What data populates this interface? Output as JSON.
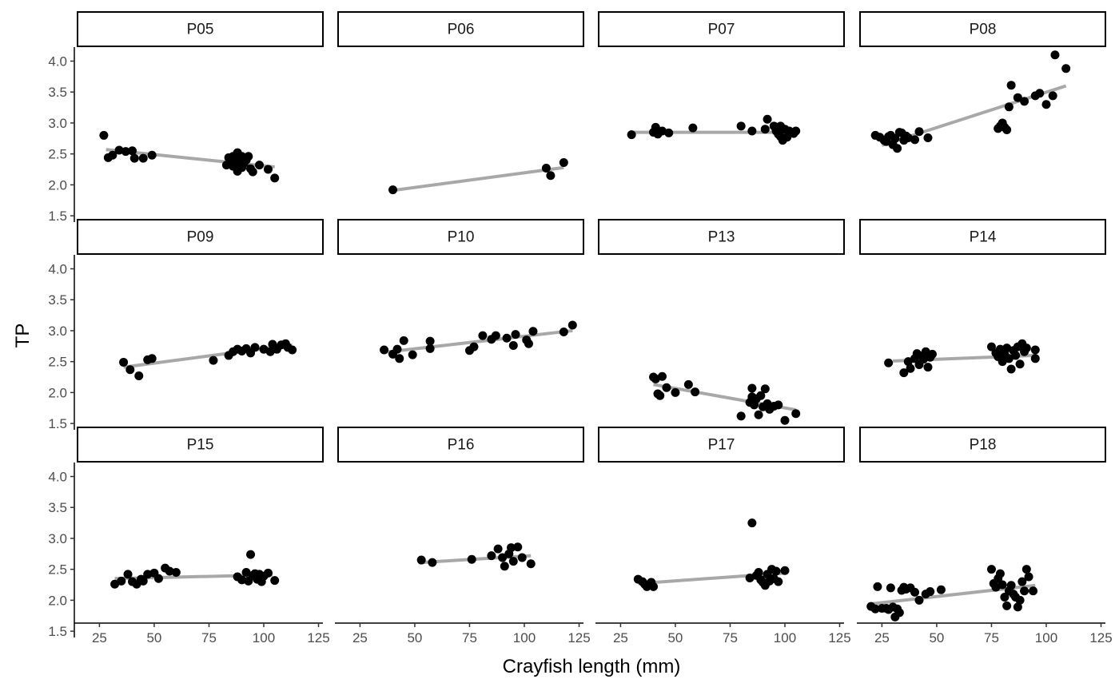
{
  "chart_data": {
    "type": "scatter",
    "xlabel": "Crayfish length (mm)",
    "ylabel": "TP",
    "xlim": [
      15,
      127
    ],
    "ylim": [
      1.45,
      4.2
    ],
    "x_ticks": [
      "25",
      "50",
      "75",
      "100",
      "125"
    ],
    "y_ticks": [
      "1.5",
      "2.0",
      "2.5",
      "3.0",
      "3.5",
      "4.0"
    ],
    "grid": false,
    "legend": "none",
    "facet_cols": 4,
    "point_color": "#000000",
    "fit_color": "#a8a8a8",
    "panels": [
      {
        "label": "P05",
        "points": [
          [
            27,
            2.8
          ],
          [
            29,
            2.44
          ],
          [
            31,
            2.48
          ],
          [
            34,
            2.56
          ],
          [
            37,
            2.54
          ],
          [
            40,
            2.55
          ],
          [
            41,
            2.43
          ],
          [
            45,
            2.43
          ],
          [
            49,
            2.48
          ],
          [
            83,
            2.32
          ],
          [
            84,
            2.44
          ],
          [
            85,
            2.38
          ],
          [
            86,
            2.46
          ],
          [
            86,
            2.3
          ],
          [
            87,
            2.33
          ],
          [
            88,
            2.22
          ],
          [
            88,
            2.52
          ],
          [
            89,
            2.39
          ],
          [
            90,
            2.46
          ],
          [
            90,
            2.28
          ],
          [
            91,
            2.35
          ],
          [
            92,
            2.4
          ],
          [
            93,
            2.46
          ],
          [
            94,
            2.26
          ],
          [
            95,
            2.21
          ],
          [
            98,
            2.32
          ],
          [
            102,
            2.25
          ],
          [
            105,
            2.11
          ]
        ],
        "fit": [
          [
            28,
            2.57
          ],
          [
            105,
            2.29
          ]
        ]
      },
      {
        "label": "P06",
        "points": [
          [
            40,
            1.92
          ],
          [
            110,
            2.27
          ],
          [
            112,
            2.15
          ],
          [
            118,
            2.36
          ]
        ],
        "fit": [
          [
            40,
            1.91
          ],
          [
            118,
            2.28
          ]
        ]
      },
      {
        "label": "P07",
        "points": [
          [
            30,
            2.81
          ],
          [
            40,
            2.85
          ],
          [
            41,
            2.93
          ],
          [
            42,
            2.82
          ],
          [
            44,
            2.87
          ],
          [
            47,
            2.84
          ],
          [
            58,
            2.92
          ],
          [
            80,
            2.95
          ],
          [
            85,
            2.87
          ],
          [
            91,
            2.9
          ],
          [
            92,
            3.06
          ],
          [
            95,
            2.95
          ],
          [
            96,
            2.87
          ],
          [
            97,
            2.82
          ],
          [
            98,
            2.78
          ],
          [
            98,
            2.95
          ],
          [
            99,
            2.72
          ],
          [
            100,
            2.9
          ],
          [
            101,
            2.77
          ],
          [
            102,
            2.87
          ],
          [
            104,
            2.83
          ],
          [
            105,
            2.87
          ]
        ],
        "fit": [
          [
            30,
            2.85
          ],
          [
            105,
            2.85
          ]
        ]
      },
      {
        "label": "P08",
        "points": [
          [
            22,
            2.8
          ],
          [
            24,
            2.77
          ],
          [
            26,
            2.72
          ],
          [
            27,
            2.7
          ],
          [
            28,
            2.78
          ],
          [
            29,
            2.8
          ],
          [
            30,
            2.65
          ],
          [
            31,
            2.75
          ],
          [
            32,
            2.59
          ],
          [
            33,
            2.85
          ],
          [
            34,
            2.84
          ],
          [
            35,
            2.72
          ],
          [
            36,
            2.79
          ],
          [
            37,
            2.76
          ],
          [
            40,
            2.73
          ],
          [
            42,
            2.86
          ],
          [
            46,
            2.76
          ],
          [
            78,
            2.91
          ],
          [
            79,
            2.95
          ],
          [
            80,
            3.0
          ],
          [
            81,
            2.93
          ],
          [
            82,
            2.89
          ],
          [
            83,
            3.26
          ],
          [
            84,
            3.61
          ],
          [
            87,
            3.41
          ],
          [
            90,
            3.35
          ],
          [
            95,
            3.44
          ],
          [
            97,
            3.48
          ],
          [
            100,
            3.3
          ],
          [
            103,
            3.44
          ],
          [
            104,
            4.1
          ],
          [
            109,
            3.88
          ]
        ],
        "fit": [
          [
            25,
            2.64
          ],
          [
            109,
            3.6
          ]
        ]
      },
      {
        "label": "P09",
        "points": [
          [
            36,
            2.49
          ],
          [
            39,
            2.37
          ],
          [
            43,
            2.27
          ],
          [
            47,
            2.53
          ],
          [
            49,
            2.55
          ],
          [
            77,
            2.52
          ],
          [
            84,
            2.6
          ],
          [
            86,
            2.66
          ],
          [
            88,
            2.7
          ],
          [
            90,
            2.67
          ],
          [
            92,
            2.71
          ],
          [
            94,
            2.64
          ],
          [
            96,
            2.73
          ],
          [
            100,
            2.7
          ],
          [
            103,
            2.66
          ],
          [
            104,
            2.78
          ],
          [
            106,
            2.7
          ],
          [
            108,
            2.77
          ],
          [
            110,
            2.79
          ],
          [
            111,
            2.73
          ],
          [
            113,
            2.69
          ]
        ],
        "fit": [
          [
            36,
            2.41
          ],
          [
            113,
            2.77
          ]
        ]
      },
      {
        "label": "P10",
        "points": [
          [
            36,
            2.69
          ],
          [
            40,
            2.62
          ],
          [
            42,
            2.7
          ],
          [
            43,
            2.55
          ],
          [
            45,
            2.84
          ],
          [
            49,
            2.61
          ],
          [
            57,
            2.83
          ],
          [
            57,
            2.71
          ],
          [
            75,
            2.68
          ],
          [
            77,
            2.74
          ],
          [
            81,
            2.92
          ],
          [
            85,
            2.86
          ],
          [
            87,
            2.92
          ],
          [
            92,
            2.88
          ],
          [
            95,
            2.76
          ],
          [
            96,
            2.94
          ],
          [
            101,
            2.85
          ],
          [
            102,
            2.79
          ],
          [
            104,
            2.99
          ],
          [
            118,
            2.98
          ],
          [
            122,
            3.09
          ]
        ],
        "fit": [
          [
            36,
            2.65
          ],
          [
            122,
            3.0
          ]
        ]
      },
      {
        "label": "P13",
        "points": [
          [
            40,
            2.25
          ],
          [
            41,
            2.22
          ],
          [
            42,
            1.98
          ],
          [
            43,
            1.95
          ],
          [
            44,
            2.26
          ],
          [
            46,
            2.08
          ],
          [
            50,
            2.0
          ],
          [
            56,
            2.13
          ],
          [
            59,
            2.01
          ],
          [
            80,
            1.62
          ],
          [
            84,
            1.84
          ],
          [
            85,
            2.07
          ],
          [
            85,
            1.93
          ],
          [
            86,
            1.8
          ],
          [
            87,
            1.9
          ],
          [
            88,
            1.64
          ],
          [
            89,
            1.95
          ],
          [
            90,
            1.77
          ],
          [
            91,
            2.06
          ],
          [
            92,
            1.82
          ],
          [
            93,
            1.73
          ],
          [
            95,
            1.78
          ],
          [
            97,
            1.8
          ],
          [
            100,
            1.55
          ],
          [
            105,
            1.66
          ]
        ],
        "fit": [
          [
            40,
            2.13
          ],
          [
            105,
            1.72
          ]
        ]
      },
      {
        "label": "P14",
        "points": [
          [
            28,
            2.48
          ],
          [
            35,
            2.32
          ],
          [
            37,
            2.5
          ],
          [
            38,
            2.39
          ],
          [
            40,
            2.55
          ],
          [
            41,
            2.63
          ],
          [
            42,
            2.45
          ],
          [
            43,
            2.59
          ],
          [
            44,
            2.54
          ],
          [
            45,
            2.66
          ],
          [
            46,
            2.41
          ],
          [
            47,
            2.57
          ],
          [
            48,
            2.62
          ],
          [
            75,
            2.74
          ],
          [
            77,
            2.64
          ],
          [
            78,
            2.58
          ],
          [
            79,
            2.7
          ],
          [
            80,
            2.5
          ],
          [
            81,
            2.62
          ],
          [
            82,
            2.72
          ],
          [
            83,
            2.55
          ],
          [
            84,
            2.38
          ],
          [
            85,
            2.68
          ],
          [
            86,
            2.6
          ],
          [
            87,
            2.74
          ],
          [
            88,
            2.46
          ],
          [
            89,
            2.79
          ],
          [
            90,
            2.66
          ],
          [
            91,
            2.72
          ],
          [
            95,
            2.55
          ],
          [
            95,
            2.69
          ]
        ],
        "fit": [
          [
            30,
            2.51
          ],
          [
            95,
            2.6
          ]
        ]
      },
      {
        "label": "P15",
        "points": [
          [
            32,
            2.26
          ],
          [
            35,
            2.31
          ],
          [
            38,
            2.42
          ],
          [
            40,
            2.3
          ],
          [
            42,
            2.26
          ],
          [
            44,
            2.34
          ],
          [
            45,
            2.31
          ],
          [
            47,
            2.42
          ],
          [
            50,
            2.44
          ],
          [
            52,
            2.35
          ],
          [
            55,
            2.52
          ],
          [
            57,
            2.47
          ],
          [
            60,
            2.45
          ],
          [
            88,
            2.38
          ],
          [
            90,
            2.33
          ],
          [
            92,
            2.45
          ],
          [
            93,
            2.31
          ],
          [
            94,
            2.74
          ],
          [
            95,
            2.4
          ],
          [
            96,
            2.43
          ],
          [
            97,
            2.34
          ],
          [
            98,
            2.42
          ],
          [
            99,
            2.3
          ],
          [
            100,
            2.39
          ],
          [
            102,
            2.44
          ],
          [
            105,
            2.32
          ]
        ],
        "fit": [
          [
            32,
            2.35
          ],
          [
            104,
            2.41
          ]
        ]
      },
      {
        "label": "P16",
        "points": [
          [
            53,
            2.65
          ],
          [
            58,
            2.61
          ],
          [
            76,
            2.66
          ],
          [
            85,
            2.72
          ],
          [
            88,
            2.83
          ],
          [
            90,
            2.69
          ],
          [
            91,
            2.55
          ],
          [
            93,
            2.75
          ],
          [
            94,
            2.85
          ],
          [
            95,
            2.63
          ],
          [
            97,
            2.86
          ],
          [
            99,
            2.69
          ],
          [
            103,
            2.59
          ]
        ],
        "fit": [
          [
            53,
            2.61
          ],
          [
            103,
            2.72
          ]
        ]
      },
      {
        "label": "P17",
        "points": [
          [
            33,
            2.34
          ],
          [
            35,
            2.3
          ],
          [
            36,
            2.26
          ],
          [
            37,
            2.22
          ],
          [
            39,
            2.29
          ],
          [
            40,
            2.22
          ],
          [
            84,
            2.36
          ],
          [
            85,
            3.25
          ],
          [
            87,
            2.4
          ],
          [
            88,
            2.45
          ],
          [
            89,
            2.33
          ],
          [
            90,
            2.29
          ],
          [
            91,
            2.24
          ],
          [
            92,
            2.42
          ],
          [
            93,
            2.31
          ],
          [
            94,
            2.5
          ],
          [
            95,
            2.35
          ],
          [
            96,
            2.47
          ],
          [
            97,
            2.3
          ],
          [
            100,
            2.48
          ]
        ],
        "fit": [
          [
            33,
            2.27
          ],
          [
            100,
            2.44
          ]
        ]
      },
      {
        "label": "P18",
        "points": [
          [
            20,
            1.9
          ],
          [
            22,
            1.86
          ],
          [
            23,
            2.22
          ],
          [
            25,
            1.87
          ],
          [
            27,
            1.87
          ],
          [
            28,
            1.85
          ],
          [
            29,
            2.2
          ],
          [
            30,
            1.89
          ],
          [
            31,
            1.73
          ],
          [
            32,
            1.86
          ],
          [
            33,
            1.8
          ],
          [
            34,
            2.16
          ],
          [
            35,
            2.21
          ],
          [
            36,
            2.18
          ],
          [
            38,
            2.2
          ],
          [
            40,
            2.13
          ],
          [
            42,
            2.0
          ],
          [
            45,
            2.1
          ],
          [
            47,
            2.14
          ],
          [
            52,
            2.17
          ],
          [
            75,
            2.5
          ],
          [
            76,
            2.27
          ],
          [
            77,
            2.21
          ],
          [
            78,
            2.35
          ],
          [
            79,
            2.43
          ],
          [
            80,
            2.25
          ],
          [
            81,
            2.05
          ],
          [
            82,
            1.91
          ],
          [
            83,
            2.15
          ],
          [
            84,
            2.24
          ],
          [
            85,
            2.1
          ],
          [
            86,
            2.05
          ],
          [
            87,
            1.89
          ],
          [
            88,
            2.0
          ],
          [
            89,
            2.3
          ],
          [
            90,
            2.15
          ],
          [
            91,
            2.5
          ],
          [
            92,
            2.38
          ],
          [
            94,
            2.15
          ]
        ],
        "fit": [
          [
            20,
            1.94
          ],
          [
            95,
            2.24
          ]
        ]
      }
    ]
  }
}
